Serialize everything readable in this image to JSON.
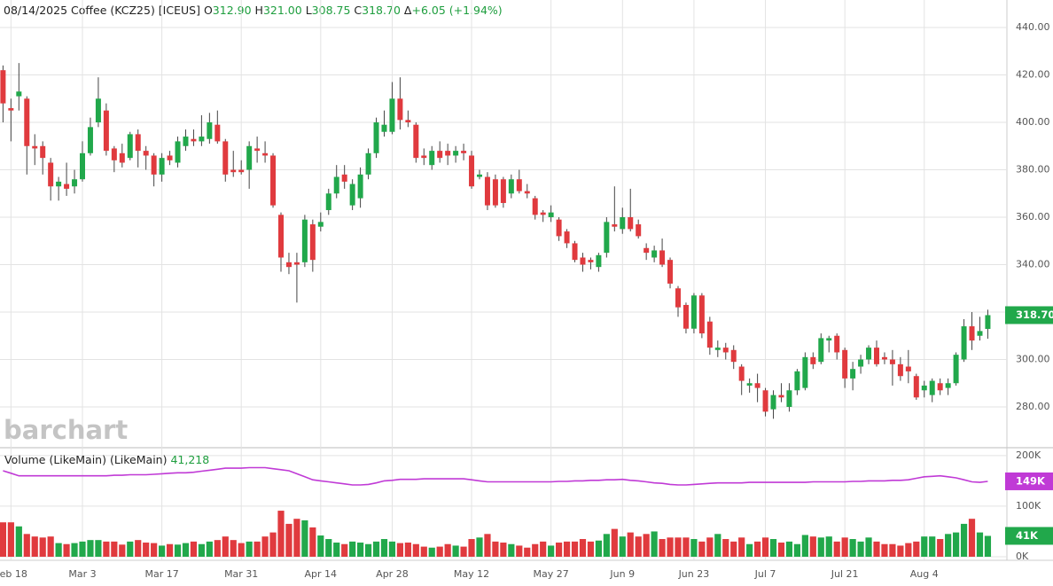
{
  "chart_data": {
    "type": "candlestick",
    "header": {
      "symbol": "08/14/2025 Coffee (KCZ25) [ICEUS]",
      "fields": [
        {
          "key": "O",
          "value": "312.90"
        },
        {
          "key": "H",
          "value": "321.00"
        },
        {
          "key": "L",
          "value": "308.75"
        },
        {
          "key": "C",
          "value": "318.70"
        },
        {
          "key": "Δ",
          "value": "+6.05 (+1.94%)"
        }
      ]
    },
    "watermark": "barchart",
    "categories": [
      null,
      "Feb 18",
      null,
      null,
      null,
      null,
      null,
      null,
      null,
      null,
      "Mar 3",
      null,
      null,
      null,
      null,
      null,
      null,
      null,
      null,
      null,
      "Mar 17",
      null,
      null,
      null,
      null,
      null,
      null,
      null,
      null,
      null,
      "Mar 31",
      null,
      null,
      null,
      null,
      null,
      null,
      null,
      null,
      null,
      "Apr 14",
      null,
      null,
      null,
      null,
      null,
      null,
      null,
      null,
      "Apr 28",
      null,
      null,
      null,
      null,
      null,
      null,
      null,
      null,
      null,
      "May 12",
      null,
      null,
      null,
      null,
      null,
      null,
      null,
      null,
      null,
      "May 27",
      null,
      null,
      null,
      null,
      null,
      null,
      null,
      null,
      "Jun 9",
      null,
      null,
      null,
      null,
      null,
      null,
      null,
      null,
      "Jun 23",
      null,
      null,
      null,
      null,
      null,
      null,
      null,
      null,
      "Jul 7",
      null,
      null,
      null,
      null,
      null,
      null,
      null,
      null,
      null,
      "Jul 21",
      null,
      null,
      null,
      null,
      null,
      null,
      null,
      null,
      null,
      "Aug 4",
      null,
      null,
      null,
      null,
      null,
      null,
      null,
      null
    ],
    "up_color": "#21a84b",
    "down_color": "#e03a3e",
    "price": {
      "last_label": "318.70",
      "open": [
        422,
        406,
        411,
        410,
        390,
        390,
        383,
        373,
        374,
        373,
        376,
        387,
        400,
        405,
        389,
        387,
        385,
        395,
        388,
        386,
        378,
        386,
        383,
        390,
        393,
        392,
        393,
        399,
        392,
        380,
        380,
        380,
        389,
        387,
        386,
        361,
        341,
        341,
        341,
        357,
        356,
        363,
        370,
        378,
        365,
        368,
        378,
        387,
        396,
        396,
        410,
        401,
        399,
        386,
        382,
        388,
        388,
        386,
        388,
        386,
        377,
        377,
        376,
        376,
        370,
        376,
        371,
        368,
        362,
        360,
        359,
        354,
        349,
        343,
        342,
        339,
        345,
        357,
        355,
        360,
        357,
        347,
        343,
        346,
        342,
        330,
        323,
        313,
        327,
        316,
        304,
        305,
        304,
        297,
        289,
        290,
        287,
        279,
        285,
        280,
        287,
        288,
        301,
        299,
        308,
        310,
        304,
        292,
        297,
        300,
        305,
        301,
        300,
        298,
        297,
        293,
        287,
        285,
        290,
        288,
        290,
        300,
        314,
        310,
        312.9
      ],
      "high": [
        424,
        410,
        425,
        411,
        395,
        392,
        385,
        377,
        383,
        380,
        392,
        402,
        419,
        408,
        390,
        391,
        396,
        397,
        390,
        387,
        387,
        388,
        394,
        397,
        397,
        403,
        404,
        405,
        393,
        388,
        384,
        392,
        394,
        392,
        387,
        362,
        345,
        345,
        361,
        359,
        362,
        372,
        382,
        382,
        376,
        381,
        389,
        402,
        405,
        417,
        419,
        405,
        400,
        389,
        390,
        392,
        391,
        390,
        391,
        388,
        380,
        379,
        378,
        377,
        378,
        380,
        374,
        369,
        363,
        365,
        360,
        355,
        350,
        345,
        343,
        345,
        360,
        373,
        364,
        372,
        359,
        349,
        348,
        351,
        343,
        331,
        324,
        328,
        328,
        318,
        308,
        307,
        306,
        298,
        292,
        294,
        288,
        287,
        290,
        290,
        296,
        303,
        303,
        311,
        310,
        311,
        305,
        299,
        302,
        306,
        308,
        303,
        304,
        301,
        304,
        294,
        291,
        292,
        292,
        292,
        303,
        317,
        320,
        318,
        321
      ],
      "low": [
        400,
        392,
        405,
        378,
        382,
        378,
        367,
        367,
        369,
        370,
        375,
        386,
        398,
        386,
        379,
        381,
        384,
        381,
        380,
        373,
        375,
        382,
        381,
        388,
        390,
        390,
        391,
        391,
        375,
        377,
        378,
        372,
        383,
        383,
        364,
        337,
        336,
        324,
        339,
        337,
        354,
        361,
        368,
        372,
        363,
        364,
        376,
        385,
        394,
        395,
        397,
        398,
        383,
        382,
        380,
        383,
        382,
        383,
        384,
        372,
        376,
        363,
        364,
        364,
        368,
        370,
        368,
        359,
        358,
        358,
        350,
        347,
        341,
        337,
        338,
        337,
        343,
        354,
        353,
        354,
        351,
        342,
        341,
        339,
        330,
        318,
        311,
        311,
        309,
        302,
        301,
        300,
        296,
        285,
        286,
        282,
        276,
        275,
        282,
        278,
        285,
        287,
        296,
        298,
        303,
        300,
        288,
        287,
        294,
        298,
        297,
        298,
        289,
        291,
        290,
        283,
        284,
        282,
        285,
        285,
        289,
        299,
        304,
        308,
        308.75
      ],
      "close": [
        408,
        405,
        413,
        390,
        389,
        385,
        373,
        375,
        372,
        376,
        387,
        398,
        410,
        388,
        384,
        383,
        395,
        388,
        386,
        378,
        385,
        384,
        392,
        394,
        392,
        394,
        400,
        392,
        378,
        379,
        379,
        390,
        388,
        386,
        365,
        343,
        339,
        340,
        359,
        342,
        358,
        370,
        377,
        375,
        374,
        378,
        387,
        400,
        399,
        410,
        401,
        400,
        385,
        385,
        388,
        385,
        386,
        388,
        387,
        373,
        378,
        365,
        365,
        366,
        376,
        371,
        370,
        361,
        361,
        362,
        352,
        349,
        342,
        340,
        341,
        344,
        358,
        356,
        360,
        355,
        352,
        345,
        346,
        340,
        332,
        322,
        313,
        327,
        311,
        305,
        305,
        303,
        299,
        291,
        290,
        288,
        278,
        285,
        284,
        287,
        295,
        301,
        298,
        309,
        309,
        303,
        292,
        296,
        300,
        305,
        298,
        300,
        298,
        293,
        295,
        284,
        289,
        291,
        287,
        290,
        302,
        314,
        308,
        312,
        318.7
      ]
    },
    "ylim": [
      262.8,
      451.6
    ],
    "yticks": [
      {
        "value": 280,
        "label": "280.00"
      },
      {
        "value": 300,
        "label": "300.00"
      },
      {
        "value": 320,
        "label": "320.00"
      },
      {
        "value": 340,
        "label": "340.00"
      },
      {
        "value": 360,
        "label": "360.00"
      },
      {
        "value": 380,
        "label": "380.00"
      },
      {
        "value": 400,
        "label": "400.00"
      },
      {
        "value": 420,
        "label": "420.00"
      },
      {
        "value": 440,
        "label": "440.00"
      }
    ],
    "volume": {
      "name": "Volume (LikeMain)  (LikeMain)",
      "legend_value": "41,218",
      "last_label": "41K",
      "values": [
        68,
        68,
        60,
        45,
        40,
        38,
        40,
        27,
        25,
        27,
        30,
        33,
        33,
        30,
        30,
        24,
        30,
        33,
        28,
        27,
        22,
        25,
        24,
        27,
        30,
        25,
        30,
        33,
        40,
        33,
        27,
        30,
        30,
        40,
        48,
        91,
        65,
        75,
        72,
        58,
        42,
        35,
        28,
        25,
        30,
        28,
        25,
        30,
        35,
        30,
        27,
        28,
        25,
        20,
        18,
        20,
        25,
        22,
        20,
        35,
        38,
        45,
        30,
        28,
        25,
        22,
        18,
        25,
        30,
        22,
        28,
        30,
        30,
        35,
        30,
        32,
        45,
        55,
        40,
        48,
        40,
        45,
        50,
        35,
        38,
        38,
        38,
        35,
        30,
        38,
        45,
        35,
        30,
        38,
        25,
        30,
        38,
        35,
        28,
        30,
        25,
        43,
        40,
        38,
        40,
        30,
        38,
        35,
        30,
        38,
        30,
        25,
        25,
        22,
        27,
        30,
        40,
        40,
        35,
        45,
        48,
        65,
        75,
        48,
        41.218
      ]
    },
    "volume_ma": {
      "color": "#c03ad6",
      "last_label": "149K",
      "values": [
        170,
        165,
        160,
        160,
        160,
        160,
        160,
        160,
        160,
        160,
        160,
        160,
        160,
        160,
        161,
        161,
        162,
        162,
        162,
        163,
        164,
        165,
        166,
        166,
        167,
        169,
        171,
        173,
        175,
        175,
        175,
        176,
        176,
        176,
        174,
        172,
        170,
        164,
        158,
        152,
        150,
        148,
        146,
        144,
        142,
        142,
        143,
        146,
        150,
        151,
        153,
        153,
        153,
        154,
        154,
        154,
        154,
        154,
        154,
        152,
        150,
        148,
        148,
        148,
        148,
        148,
        148,
        148,
        148,
        148,
        149,
        149,
        150,
        150,
        151,
        151,
        152,
        152,
        153,
        151,
        150,
        148,
        146,
        145,
        143,
        142,
        142,
        143,
        144,
        145,
        146,
        146,
        146,
        146,
        147,
        147,
        147,
        147,
        147,
        147,
        147,
        147,
        148,
        148,
        148,
        148,
        148,
        149,
        149,
        150,
        150,
        150,
        151,
        151,
        152,
        155,
        158,
        159,
        160,
        158,
        156,
        152,
        148,
        147,
        149
      ]
    },
    "y2lim": [
      0,
      212
    ],
    "y2ticks": [
      {
        "value": 0,
        "label": "0K"
      },
      {
        "value": 100,
        "label": "100K"
      },
      {
        "value": 200,
        "label": "200K"
      }
    ],
    "grid": true
  }
}
